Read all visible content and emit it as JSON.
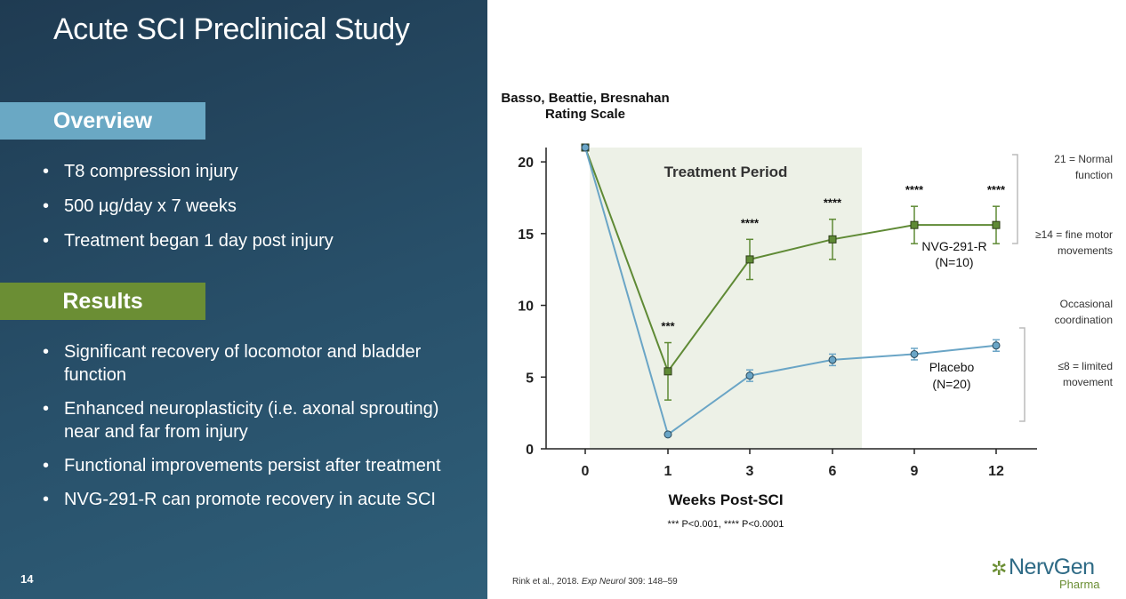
{
  "slide": {
    "title": "Acute SCI Preclinical Study",
    "page_number": "14",
    "overview_heading": "Overview",
    "overview_items": [
      "T8 compression injury",
      "500 µg/day x 7 weeks",
      "Treatment began 1 day post injury"
    ],
    "results_heading": "Results",
    "results_items": [
      "Significant recovery of locomotor and bladder function",
      "Enhanced neuroplasticity (i.e. axonal sprouting) near and far from injury",
      "Functional improvements persist after treatment",
      "NVG-291-R can promote recovery in acute SCI"
    ],
    "citation_pre": "Rink et al., 2018. ",
    "citation_journal": "Exp Neurol",
    "citation_post": " 309: 148–59",
    "logo_name": "NervGen",
    "logo_sub": "Pharma"
  },
  "colors": {
    "panel": "#28506a",
    "overview_band": "#6aa8c4",
    "results_band": "#6b8e34",
    "nvg": "#5f8a35",
    "placebo": "#6aa5c6",
    "treatment_shade": "#edf1e7"
  },
  "chart_data": {
    "type": "line",
    "ylabel": "Basso, Beattie, Bresnahan Rating Scale",
    "xlabel": "Weeks Post-SCI",
    "x_ticks": [
      "0",
      "1",
      "3",
      "6",
      "9",
      "12"
    ],
    "ylim": [
      0,
      21
    ],
    "y_ticks": [
      0,
      5,
      10,
      15,
      20
    ],
    "shaded_region_label": "Treatment Period",
    "series": [
      {
        "name": "NVG-291-R",
        "n": "(N=10)",
        "marker": "square",
        "values": [
          21,
          5.4,
          13.2,
          14.6,
          15.6,
          15.6
        ],
        "errors": [
          0,
          2.0,
          1.4,
          1.4,
          1.3,
          1.3
        ],
        "significance": [
          "",
          "***",
          "****",
          "****",
          "****",
          "****"
        ]
      },
      {
        "name": "Placebo",
        "n": "(N=20)",
        "marker": "circle",
        "values": [
          21,
          1.0,
          5.1,
          6.2,
          6.6,
          7.2
        ],
        "errors": [
          0,
          0,
          0.4,
          0.4,
          0.4,
          0.4
        ]
      }
    ],
    "annotations": [
      "21 = Normal function",
      "≥14 = fine motor movements",
      "Occasional coordination",
      "≤8 = limited movement"
    ],
    "footnote": "*** P<0.001, **** P<0.0001"
  }
}
